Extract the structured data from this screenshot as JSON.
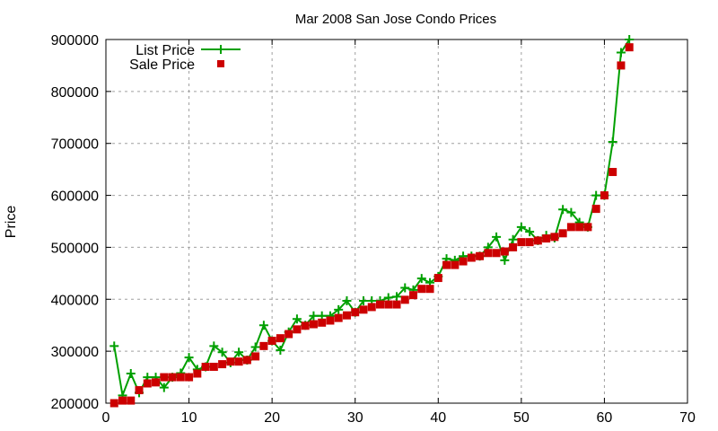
{
  "chart_data": {
    "type": "line",
    "title": "Mar 2008 San Jose Condo Prices",
    "xlabel": "",
    "ylabel": "Price",
    "xlim": [
      0,
      70
    ],
    "ylim": [
      200000,
      900000
    ],
    "xticks": [
      0,
      10,
      20,
      30,
      40,
      50,
      60,
      70
    ],
    "yticks": [
      200000,
      300000,
      400000,
      500000,
      600000,
      700000,
      800000,
      900000
    ],
    "grid": true,
    "legend_position": "top-left",
    "x": [
      1,
      2,
      3,
      4,
      5,
      6,
      7,
      8,
      9,
      10,
      11,
      12,
      13,
      14,
      15,
      16,
      17,
      18,
      19,
      20,
      21,
      22,
      23,
      24,
      25,
      26,
      27,
      28,
      29,
      30,
      31,
      32,
      33,
      34,
      35,
      36,
      37,
      38,
      39,
      40,
      41,
      42,
      43,
      44,
      45,
      46,
      47,
      48,
      49,
      50,
      51,
      52,
      53,
      54,
      55,
      56,
      57,
      58,
      59,
      60,
      61,
      62,
      63
    ],
    "series": [
      {
        "name": "List Price",
        "style": "linespoints",
        "color": "#00a000",
        "values": [
          310000,
          215000,
          257000,
          220000,
          250000,
          250000,
          230000,
          250000,
          258000,
          288000,
          265000,
          270000,
          310000,
          298000,
          278000,
          298000,
          283000,
          308000,
          350000,
          320000,
          302000,
          337000,
          362000,
          350000,
          368000,
          368000,
          368000,
          380000,
          397000,
          375000,
          397000,
          397000,
          397000,
          403000,
          405000,
          422000,
          418000,
          440000,
          432000,
          444000,
          478000,
          475000,
          483000,
          483000,
          483000,
          500000,
          520000,
          475000,
          515000,
          539000,
          530000,
          513000,
          523000,
          518000,
          573000,
          567000,
          548000,
          539000,
          600000,
          600000,
          703000,
          875000,
          900000
        ]
      },
      {
        "name": "Sale Price",
        "style": "points",
        "color": "#cc0000",
        "values": [
          200000,
          205000,
          205000,
          225000,
          238000,
          240000,
          250000,
          250000,
          250000,
          250000,
          257000,
          270000,
          270000,
          275000,
          280000,
          280000,
          283000,
          290000,
          310000,
          320000,
          325000,
          333000,
          342000,
          349000,
          352000,
          355000,
          359000,
          364000,
          369000,
          375000,
          380000,
          385000,
          390000,
          390000,
          390000,
          399000,
          408000,
          420000,
          420000,
          441000,
          466000,
          466000,
          473000,
          480000,
          483000,
          489000,
          489000,
          492000,
          500000,
          510000,
          510000,
          513000,
          517000,
          520000,
          527000,
          539000,
          539000,
          539000,
          574000,
          600000,
          645000,
          850000,
          885000
        ]
      }
    ]
  }
}
